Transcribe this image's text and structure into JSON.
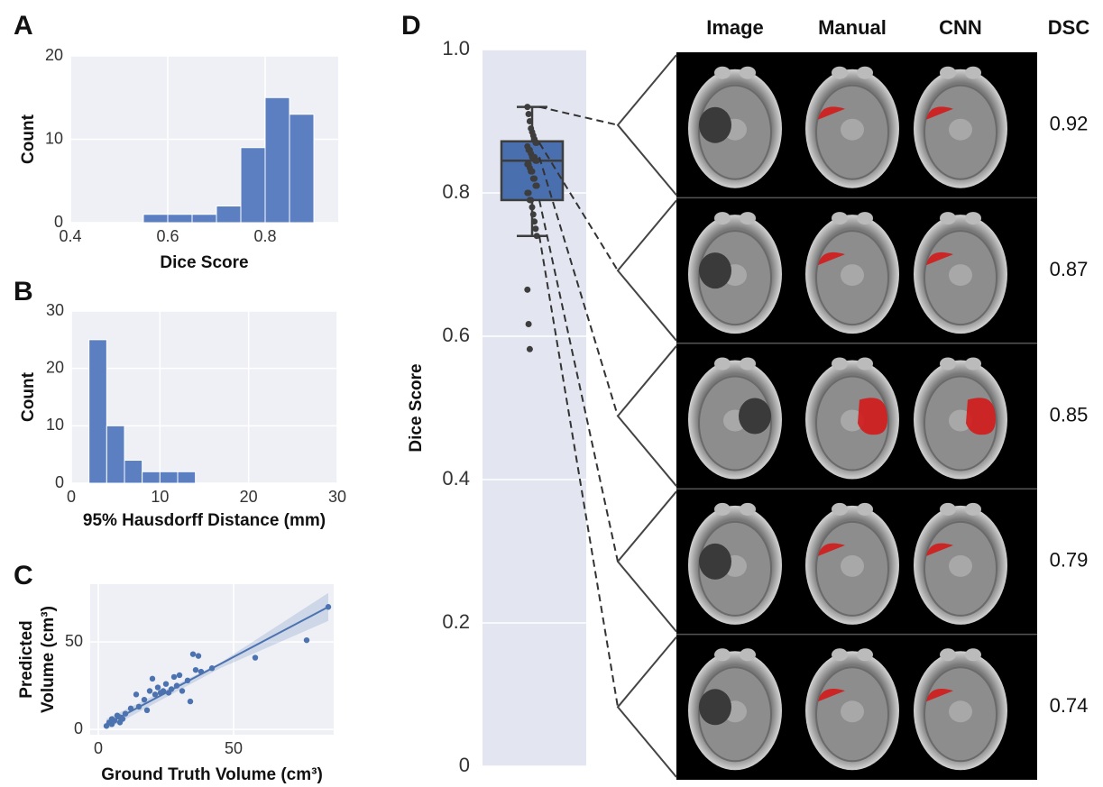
{
  "chart_data": [
    {
      "type": "histogram",
      "panel": "A",
      "xlabel": "Dice Score",
      "ylabel": "Count",
      "bins": [
        0.55,
        0.6,
        0.65,
        0.7,
        0.75,
        0.8,
        0.85,
        0.9
      ],
      "counts": [
        1,
        1,
        1,
        2,
        9,
        15,
        13
      ],
      "xlim": [
        0.4,
        0.95
      ],
      "ylim": [
        0,
        20
      ],
      "xticks": [
        0.4,
        0.6,
        0.8
      ],
      "yticks": [
        0,
        10,
        20
      ],
      "color": "#5b7fc1",
      "grid": true
    },
    {
      "type": "histogram",
      "panel": "B",
      "xlabel": "95% Hausdorff Distance (mm)",
      "ylabel": "Count",
      "bins": [
        2,
        4,
        6,
        8,
        10,
        12,
        14
      ],
      "counts": [
        25,
        10,
        4,
        2,
        2,
        2
      ],
      "xlim": [
        0,
        30
      ],
      "ylim": [
        0,
        30
      ],
      "xticks": [
        0,
        10,
        20,
        30
      ],
      "yticks": [
        0,
        10,
        20,
        30
      ],
      "color": "#5b7fc1",
      "grid": true
    },
    {
      "type": "scatter",
      "panel": "C",
      "xlabel": "Ground Truth Volume (cm³)",
      "ylabel": [
        "Predicted",
        "Volume (cm³)"
      ],
      "x": [
        3,
        4,
        5,
        5,
        6,
        7,
        8,
        8,
        9,
        10,
        12,
        14,
        15,
        17,
        18,
        19,
        20,
        21,
        22,
        23,
        24,
        25,
        26,
        27,
        28,
        29,
        30,
        31,
        33,
        34,
        35,
        36,
        37,
        38,
        42,
        58,
        77,
        85
      ],
      "y": [
        2,
        4,
        3,
        6,
        5,
        8,
        4,
        7,
        6,
        9,
        12,
        20,
        13,
        17,
        11,
        22,
        29,
        20,
        24,
        21,
        22,
        26,
        21,
        23,
        30,
        25,
        31,
        22,
        28,
        16,
        43,
        34,
        42,
        33,
        35,
        41,
        51,
        70
      ],
      "fit": {
        "x": [
          3,
          85
        ],
        "y": [
          3,
          70
        ]
      },
      "band": {
        "x": [
          3,
          45,
          85
        ],
        "lower": [
          0,
          35,
          62
        ],
        "upper": [
          6,
          38,
          78
        ]
      },
      "xlim": [
        -3,
        87
      ],
      "ylim": [
        -3,
        83
      ],
      "xticks": [
        0,
        50
      ],
      "yticks": [
        0,
        50
      ],
      "color": "#4c72b0",
      "grid": true
    },
    {
      "type": "box",
      "panel": "D",
      "ylabel": "Dice Score",
      "box": {
        "whislo": 0.74,
        "q1": 0.79,
        "median": 0.845,
        "q3": 0.872,
        "whishi": 0.92
      },
      "points": [
        0.92,
        0.91,
        0.9,
        0.89,
        0.885,
        0.88,
        0.875,
        0.87,
        0.87,
        0.865,
        0.86,
        0.86,
        0.855,
        0.85,
        0.85,
        0.85,
        0.845,
        0.845,
        0.84,
        0.84,
        0.835,
        0.83,
        0.83,
        0.82,
        0.82,
        0.81,
        0.81,
        0.8,
        0.8,
        0.79,
        0.79,
        0.78,
        0.77,
        0.76,
        0.75,
        0.74,
        0.665,
        0.617,
        0.582
      ],
      "ylim": [
        0,
        1
      ],
      "yticks": [
        0,
        0.2,
        0.4,
        0.6,
        0.8,
        {
          "value": 1,
          "label": "1.0"
        }
      ],
      "color": "#4a6fae",
      "grid": true
    }
  ],
  "image_grid": {
    "columns": [
      "Image",
      "Manual",
      "CNN",
      "DSC"
    ],
    "dsc": [
      0.92,
      0.87,
      0.85,
      0.79,
      0.74
    ]
  }
}
